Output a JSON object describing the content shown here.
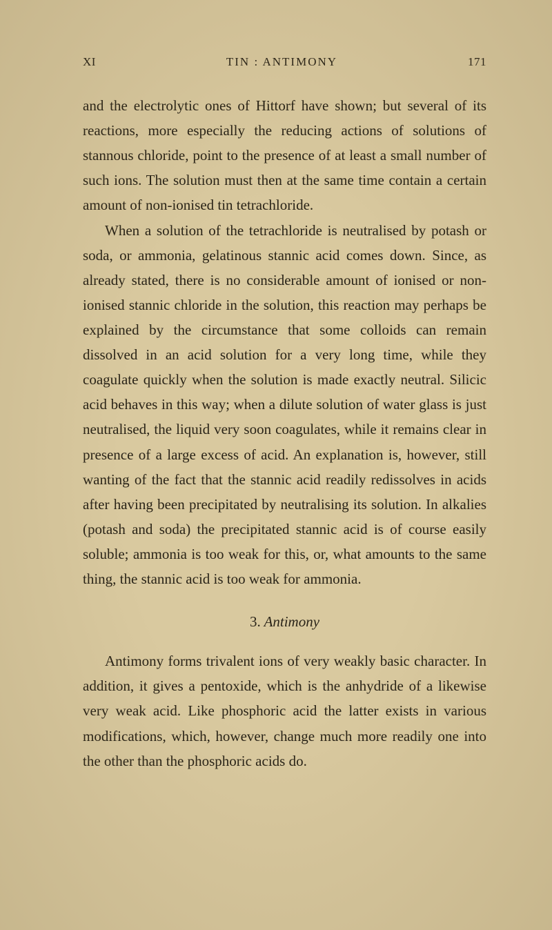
{
  "header": {
    "chapter": "XI",
    "title": "TIN : ANTIMONY",
    "page": "171"
  },
  "paragraphs": {
    "p1": "and the electrolytic ones of Hittorf have shown; but several of its reactions, more especially the reducing actions of solutions of stannous chloride, point to the presence of at least a small number of such ions. The solution must then at the same time contain a certain amount of non-ionised tin tetrachloride.",
    "p2": "When a solution of the tetrachloride is neutralised by potash or soda, or ammonia, gelatinous stannic acid comes down. Since, as already stated, there is no considerable amount of ionised or non-ionised stannic chloride in the solution, this reaction may perhaps be explained by the circumstance that some colloids can remain dissolved in an acid solution for a very long time, while they coagulate quickly when the solution is made exactly neutral. Silicic acid behaves in this way; when a dilute solution of water glass is just neutralised, the liquid very soon coagulates, while it remains clear in presence of a large excess of acid. An explanation is, however, still wanting of the fact that the stannic acid readily redissolves in acids after having been precipitated by neutralising its solution. In alkalies (potash and soda) the precipitated stannic acid is of course easily soluble; ammonia is too weak for this, or, what amounts to the same thing, the stannic acid is too weak for ammonia.",
    "section_number": "3.",
    "section_title": "Antimony",
    "p3": "Antimony forms trivalent ions of very weakly basic character. In addition, it gives a pentoxide, which is the anhydride of a likewise very weak acid. Like phosphoric acid the latter exists in various modifica­tions, which, however, change much more readily one into the other than the phosphoric acids do."
  },
  "colors": {
    "background": "#d9c99f",
    "text": "#2a2418"
  },
  "typography": {
    "body_fontsize": 21,
    "header_fontsize": 17,
    "line_height": 1.72
  }
}
